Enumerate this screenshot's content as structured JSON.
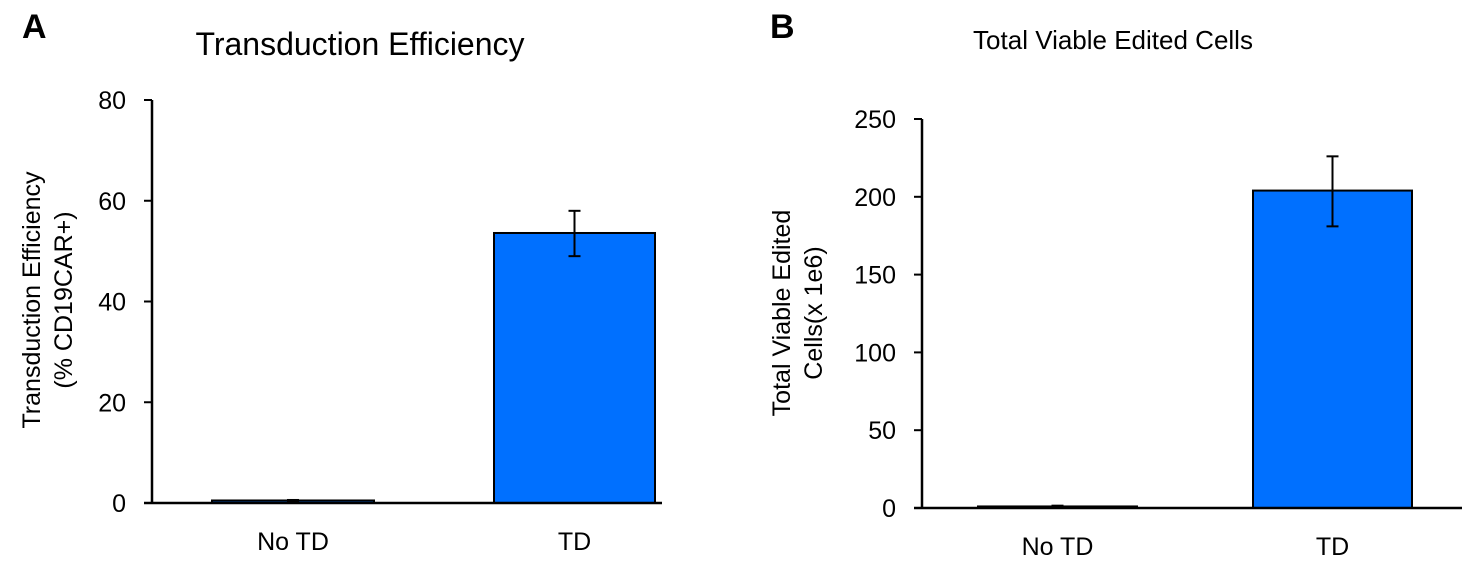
{
  "chart_data": [
    {
      "panel": "A",
      "type": "bar",
      "title": "Transduction Efficiency",
      "ylabel_lines": [
        "Transduction Efficiency",
        "(% CD19CAR+)"
      ],
      "xlabel": "",
      "categories": [
        "No TD",
        "TD"
      ],
      "values": [
        0.5,
        53.6
      ],
      "error": [
        [
          0.4,
          0.6
        ],
        [
          49,
          58
        ]
      ],
      "ylim": [
        0,
        80
      ],
      "yticks": [
        0,
        20,
        40,
        60,
        80
      ],
      "grid": false,
      "bar_color": "#0070ff"
    },
    {
      "panel": "B",
      "type": "bar",
      "title": "Total Viable Edited Cells",
      "ylabel_lines": [
        "Total Viable Edited",
        "Cells(x 1e6)"
      ],
      "xlabel": "",
      "categories": [
        "No TD",
        "TD"
      ],
      "values": [
        1,
        204
      ],
      "error": [
        [
          0.5,
          1.5
        ],
        [
          181,
          226
        ]
      ],
      "ylim": [
        0,
        250
      ],
      "yticks": [
        0,
        50,
        100,
        150,
        200,
        250
      ],
      "grid": false,
      "bar_color": "#0070ff"
    }
  ]
}
